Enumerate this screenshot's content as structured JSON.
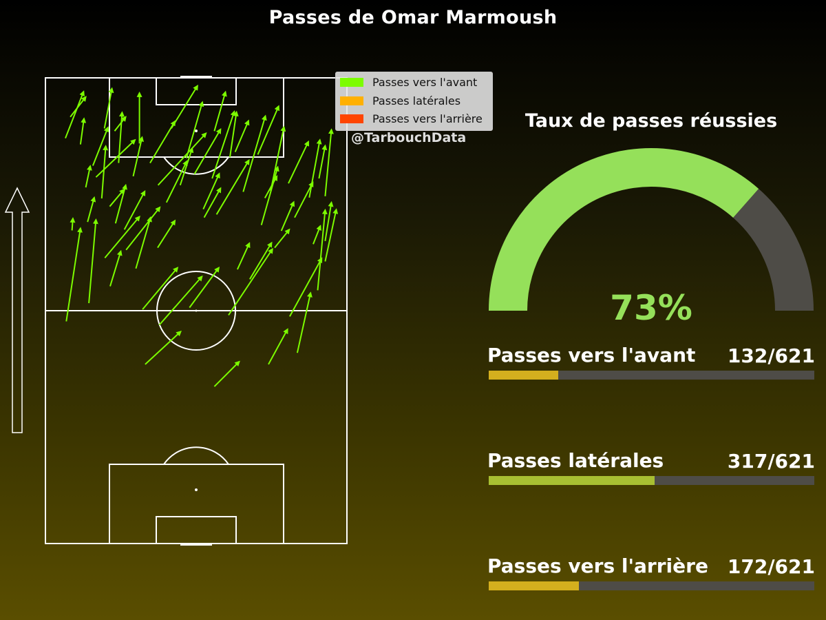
{
  "title": "Passes de Omar Marmoush",
  "legend": [
    {
      "label": "Passes vers l'avant",
      "color": "#7cfc00"
    },
    {
      "label": "Passes latérales",
      "color": "#ffb000"
    },
    {
      "label": "Passes vers l'arrière",
      "color": "#ff4500"
    }
  ],
  "credit": "@TarbouchData",
  "gauge": {
    "title": "Taux de passes réussies",
    "value": 73,
    "label": "73%",
    "fill_color": "#95e05a",
    "rest_color": "#4e4c47"
  },
  "stats": [
    {
      "label": "Passes vers l'avant",
      "value": "132/621",
      "fraction": 0.2126,
      "color": "#d4af1e"
    },
    {
      "label": "Passes latérales",
      "value": "317/621",
      "fraction": 0.5105,
      "color": "#a8bf32"
    },
    {
      "label": "Passes vers l'arrière",
      "value": "172/621",
      "fraction": 0.277,
      "color": "#d4af1e"
    }
  ],
  "chart_data": {
    "type": "scatter",
    "pitch": {
      "x_range": [
        0,
        68
      ],
      "y_range": [
        0,
        105
      ],
      "direction": "up"
    },
    "series": [
      {
        "name": "Passes vers l'avant",
        "color": "#7cfc00",
        "passes": [
          [
            4.5,
            91.4,
            8.6,
            101.9
          ],
          [
            5.6,
            96.2,
            9.1,
            100.7
          ],
          [
            10.7,
            85.2,
            14.1,
            93.8
          ],
          [
            9.1,
            80.3,
            10.1,
            85.1
          ],
          [
            7.9,
            90.0,
            8.7,
            95.8
          ],
          [
            15.6,
            93.0,
            18.1,
            96.2
          ],
          [
            16.5,
            85.8,
            17.3,
            97.2
          ],
          [
            19.8,
            82.8,
            21.8,
            91.6
          ],
          [
            21.2,
            90.2,
            21.2,
            101.6
          ],
          [
            13.3,
            93.6,
            15.0,
            102.6
          ],
          [
            23.6,
            85.8,
            29.2,
            95.2
          ],
          [
            25.4,
            80.8,
            36.2,
            92.5
          ],
          [
            28.4,
            93.6,
            34.3,
            103.2
          ],
          [
            31.8,
            86.9,
            35.4,
            99.5
          ],
          [
            33.6,
            83.3,
            39.5,
            93.4
          ],
          [
            38.1,
            93.0,
            40.6,
            101.8
          ],
          [
            37.6,
            82.3,
            42.6,
            97.4
          ],
          [
            42.8,
            88.3,
            45.8,
            95.3
          ],
          [
            44.6,
            79.3,
            49.6,
            96.4
          ],
          [
            47.9,
            87.7,
            52.6,
            98.6
          ],
          [
            50.8,
            79.5,
            53.8,
            93.9
          ],
          [
            54.8,
            81.2,
            59.3,
            90.6
          ],
          [
            59.5,
            78.0,
            61.9,
            91.0
          ],
          [
            61.7,
            82.3,
            63.1,
            89.7
          ],
          [
            63.1,
            78.3,
            64.5,
            93.3
          ],
          [
            63.1,
            63.6,
            65.6,
            75.3
          ],
          [
            60.4,
            67.5,
            62.0,
            71.6
          ],
          [
            53.2,
            70.5,
            56.0,
            77.0
          ],
          [
            48.7,
            71.8,
            52.4,
            84.9
          ],
          [
            43.3,
            61.8,
            46.0,
            67.7
          ],
          [
            38.6,
            74.2,
            45.9,
            86.4
          ],
          [
            35.8,
            73.5,
            39.5,
            80.1
          ],
          [
            27.3,
            76.9,
            31.9,
            86.2
          ],
          [
            25.3,
            66.7,
            29.2,
            72.8
          ],
          [
            15.8,
            72.2,
            18.1,
            80.8
          ],
          [
            12.7,
            77.8,
            13.6,
            89.6
          ],
          [
            9.5,
            72.5,
            11.0,
            78.0
          ],
          [
            6.0,
            70.6,
            6.2,
            73.3
          ],
          [
            4.7,
            50.1,
            7.9,
            71.1
          ],
          [
            9.8,
            54.2,
            11.4,
            73.0
          ],
          [
            14.6,
            58.0,
            17.0,
            65.9
          ],
          [
            20.4,
            62.0,
            23.7,
            73.5
          ],
          [
            21.9,
            52.8,
            29.8,
            62.2
          ],
          [
            22.5,
            40.4,
            30.5,
            47.8
          ],
          [
            25.7,
            49.3,
            35.3,
            60.2
          ],
          [
            32.5,
            53.2,
            39.1,
            62.2
          ],
          [
            41.3,
            51.5,
            51.2,
            66.4
          ],
          [
            46.1,
            59.6,
            51.0,
            67.8
          ],
          [
            55.1,
            51.2,
            62.3,
            64.3
          ],
          [
            56.8,
            43.0,
            59.8,
            56.5
          ],
          [
            61.4,
            57.1,
            63.1,
            75.2
          ],
          [
            63.1,
            68.2,
            64.5,
            76.9
          ],
          [
            50.3,
            40.4,
            54.6,
            48.3
          ],
          [
            38.1,
            35.4,
            43.7,
            41.0
          ],
          [
            13.4,
            64.4,
            21.2,
            73.7
          ],
          [
            17.8,
            70.8,
            22.4,
            79.4
          ],
          [
            11.4,
            82.6,
            20.2,
            91.0
          ],
          [
            30.4,
            80.8,
            33.1,
            89.1
          ],
          [
            41.6,
            87.1,
            43.1,
            97.3
          ],
          [
            14.5,
            76.0,
            17.7,
            79.8
          ],
          [
            18.2,
            66.2,
            25.8,
            75.8
          ],
          [
            35.6,
            75.4,
            39.2,
            83.4
          ],
          [
            49.5,
            77.9,
            52.2,
            82.8
          ],
          [
            56.2,
            73.5,
            60.3,
            81.4
          ],
          [
            51.7,
            66.7,
            55.0,
            70.8
          ]
        ]
      }
    ]
  }
}
